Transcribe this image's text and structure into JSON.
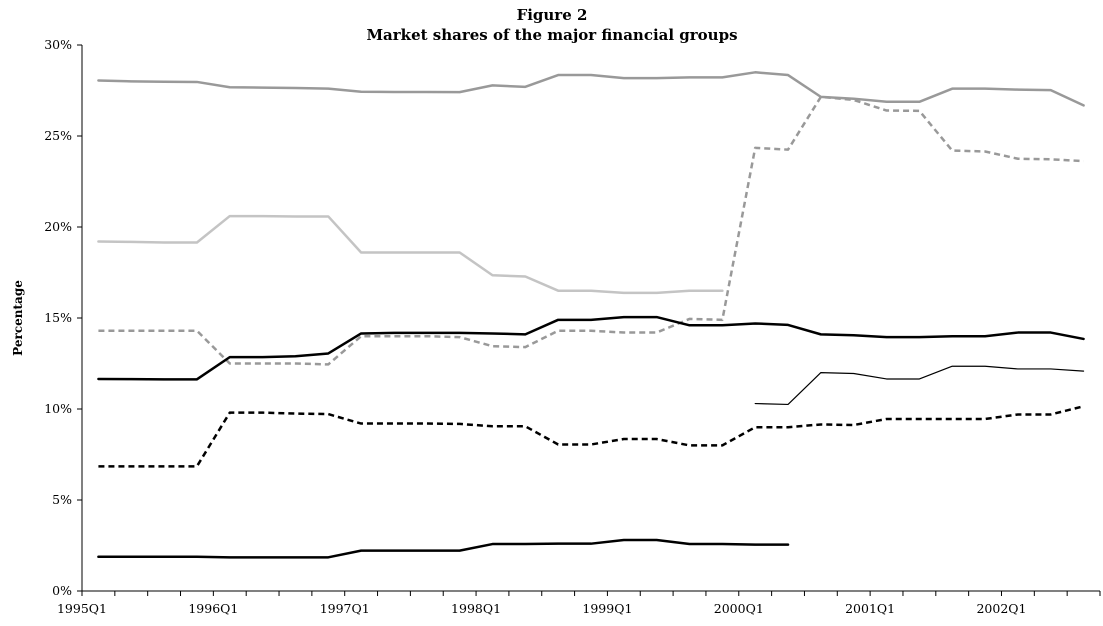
{
  "chart_data": {
    "type": "line",
    "title": "Figure 2",
    "subtitle": "Market shares of the major financial groups",
    "xlabel": "",
    "ylabel": "Percentage",
    "ylim": [
      0,
      30
    ],
    "ytick_values": [
      0,
      5,
      10,
      15,
      20,
      25,
      30
    ],
    "ytick_labels": [
      "0%",
      "5%",
      "10%",
      "15%",
      "20%",
      "25%",
      "30%"
    ],
    "x": [
      "1995Q1",
      "1995Q2",
      "1995Q3",
      "1995Q4",
      "1996Q1",
      "1996Q2",
      "1996Q3",
      "1996Q4",
      "1997Q1",
      "1997Q2",
      "1997Q3",
      "1997Q4",
      "1998Q1",
      "1998Q2",
      "1998Q3",
      "1998Q4",
      "1999Q1",
      "1999Q2",
      "1999Q3",
      "1999Q4",
      "2000Q1",
      "2000Q2",
      "2000Q3",
      "2000Q4",
      "2001Q1",
      "2001Q2",
      "2001Q3",
      "2001Q4",
      "2002Q1",
      "2002Q2",
      "2002Q3"
    ],
    "xtick_labels": [
      "1995Q1",
      "1996Q1",
      "1997Q1",
      "1998Q1",
      "1999Q1",
      "2000Q1",
      "2001Q1",
      "2002Q1"
    ],
    "legend": "none",
    "grid": false,
    "series": [
      {
        "color": "#999999",
        "dash": "solid",
        "width": 2.5,
        "values": [
          28.05,
          28.0,
          27.98,
          27.97,
          27.68,
          27.66,
          27.64,
          27.6,
          27.43,
          27.42,
          27.42,
          27.41,
          27.78,
          27.7,
          28.35,
          28.35,
          28.18,
          28.18,
          28.22,
          28.22,
          28.5,
          28.35,
          27.15,
          27.05,
          26.88,
          26.88,
          27.6,
          27.6,
          27.55,
          27.52,
          26.68
        ]
      },
      {
        "color": "#999999",
        "dash": "dashed",
        "width": 2.5,
        "values": [
          14.3,
          14.3,
          14.3,
          14.3,
          12.5,
          12.5,
          12.5,
          12.45,
          14.0,
          14.0,
          14.0,
          13.95,
          13.45,
          13.4,
          14.3,
          14.3,
          14.2,
          14.2,
          14.95,
          14.9,
          24.35,
          24.25,
          27.15,
          26.98,
          26.4,
          26.38,
          24.2,
          24.15,
          23.75,
          23.72,
          23.62
        ]
      },
      {
        "color": "#c4c4c4",
        "dash": "solid",
        "width": 2.5,
        "values": [
          19.2,
          19.18,
          19.15,
          19.15,
          20.6,
          20.6,
          20.58,
          20.58,
          18.6,
          18.6,
          18.6,
          18.6,
          17.35,
          17.28,
          16.5,
          16.5,
          16.38,
          16.38,
          16.5,
          16.5,
          null,
          null,
          null,
          null,
          null,
          null,
          null,
          null,
          null,
          null,
          null
        ]
      },
      {
        "color": "#000000",
        "dash": "solid",
        "width": 2.5,
        "values": [
          11.65,
          11.64,
          11.63,
          11.63,
          12.85,
          12.85,
          12.9,
          13.05,
          14.15,
          14.18,
          14.18,
          14.18,
          14.15,
          14.1,
          14.9,
          14.9,
          15.05,
          15.05,
          14.6,
          14.6,
          14.7,
          14.62,
          14.1,
          14.05,
          13.95,
          13.95,
          14.0,
          14.0,
          14.2,
          14.2,
          13.85
        ]
      },
      {
        "color": "#000000",
        "dash": "solid",
        "width": 1.2,
        "values": [
          null,
          null,
          null,
          null,
          null,
          null,
          null,
          null,
          null,
          null,
          null,
          null,
          null,
          null,
          null,
          null,
          null,
          null,
          null,
          null,
          10.3,
          10.25,
          12.0,
          11.95,
          11.65,
          11.65,
          12.35,
          12.35,
          12.2,
          12.2,
          12.08
        ]
      },
      {
        "color": "#000000",
        "dash": "dashed",
        "width": 2.5,
        "values": [
          6.85,
          6.85,
          6.85,
          6.85,
          9.8,
          9.8,
          9.75,
          9.72,
          9.2,
          9.2,
          9.2,
          9.18,
          9.05,
          9.05,
          8.05,
          8.05,
          8.35,
          8.35,
          8.0,
          8.0,
          9.0,
          9.0,
          9.15,
          9.12,
          9.45,
          9.45,
          9.45,
          9.45,
          9.7,
          9.7,
          10.15
        ]
      },
      {
        "color": "#000000",
        "dash": "solid",
        "width": 2.5,
        "values": [
          1.88,
          1.88,
          1.88,
          1.88,
          1.85,
          1.85,
          1.85,
          1.85,
          2.22,
          2.22,
          2.22,
          2.22,
          2.58,
          2.58,
          2.6,
          2.6,
          2.8,
          2.8,
          2.58,
          2.58,
          2.55,
          2.55,
          null,
          null,
          null,
          null,
          null,
          null,
          null,
          null,
          null
        ]
      }
    ]
  }
}
